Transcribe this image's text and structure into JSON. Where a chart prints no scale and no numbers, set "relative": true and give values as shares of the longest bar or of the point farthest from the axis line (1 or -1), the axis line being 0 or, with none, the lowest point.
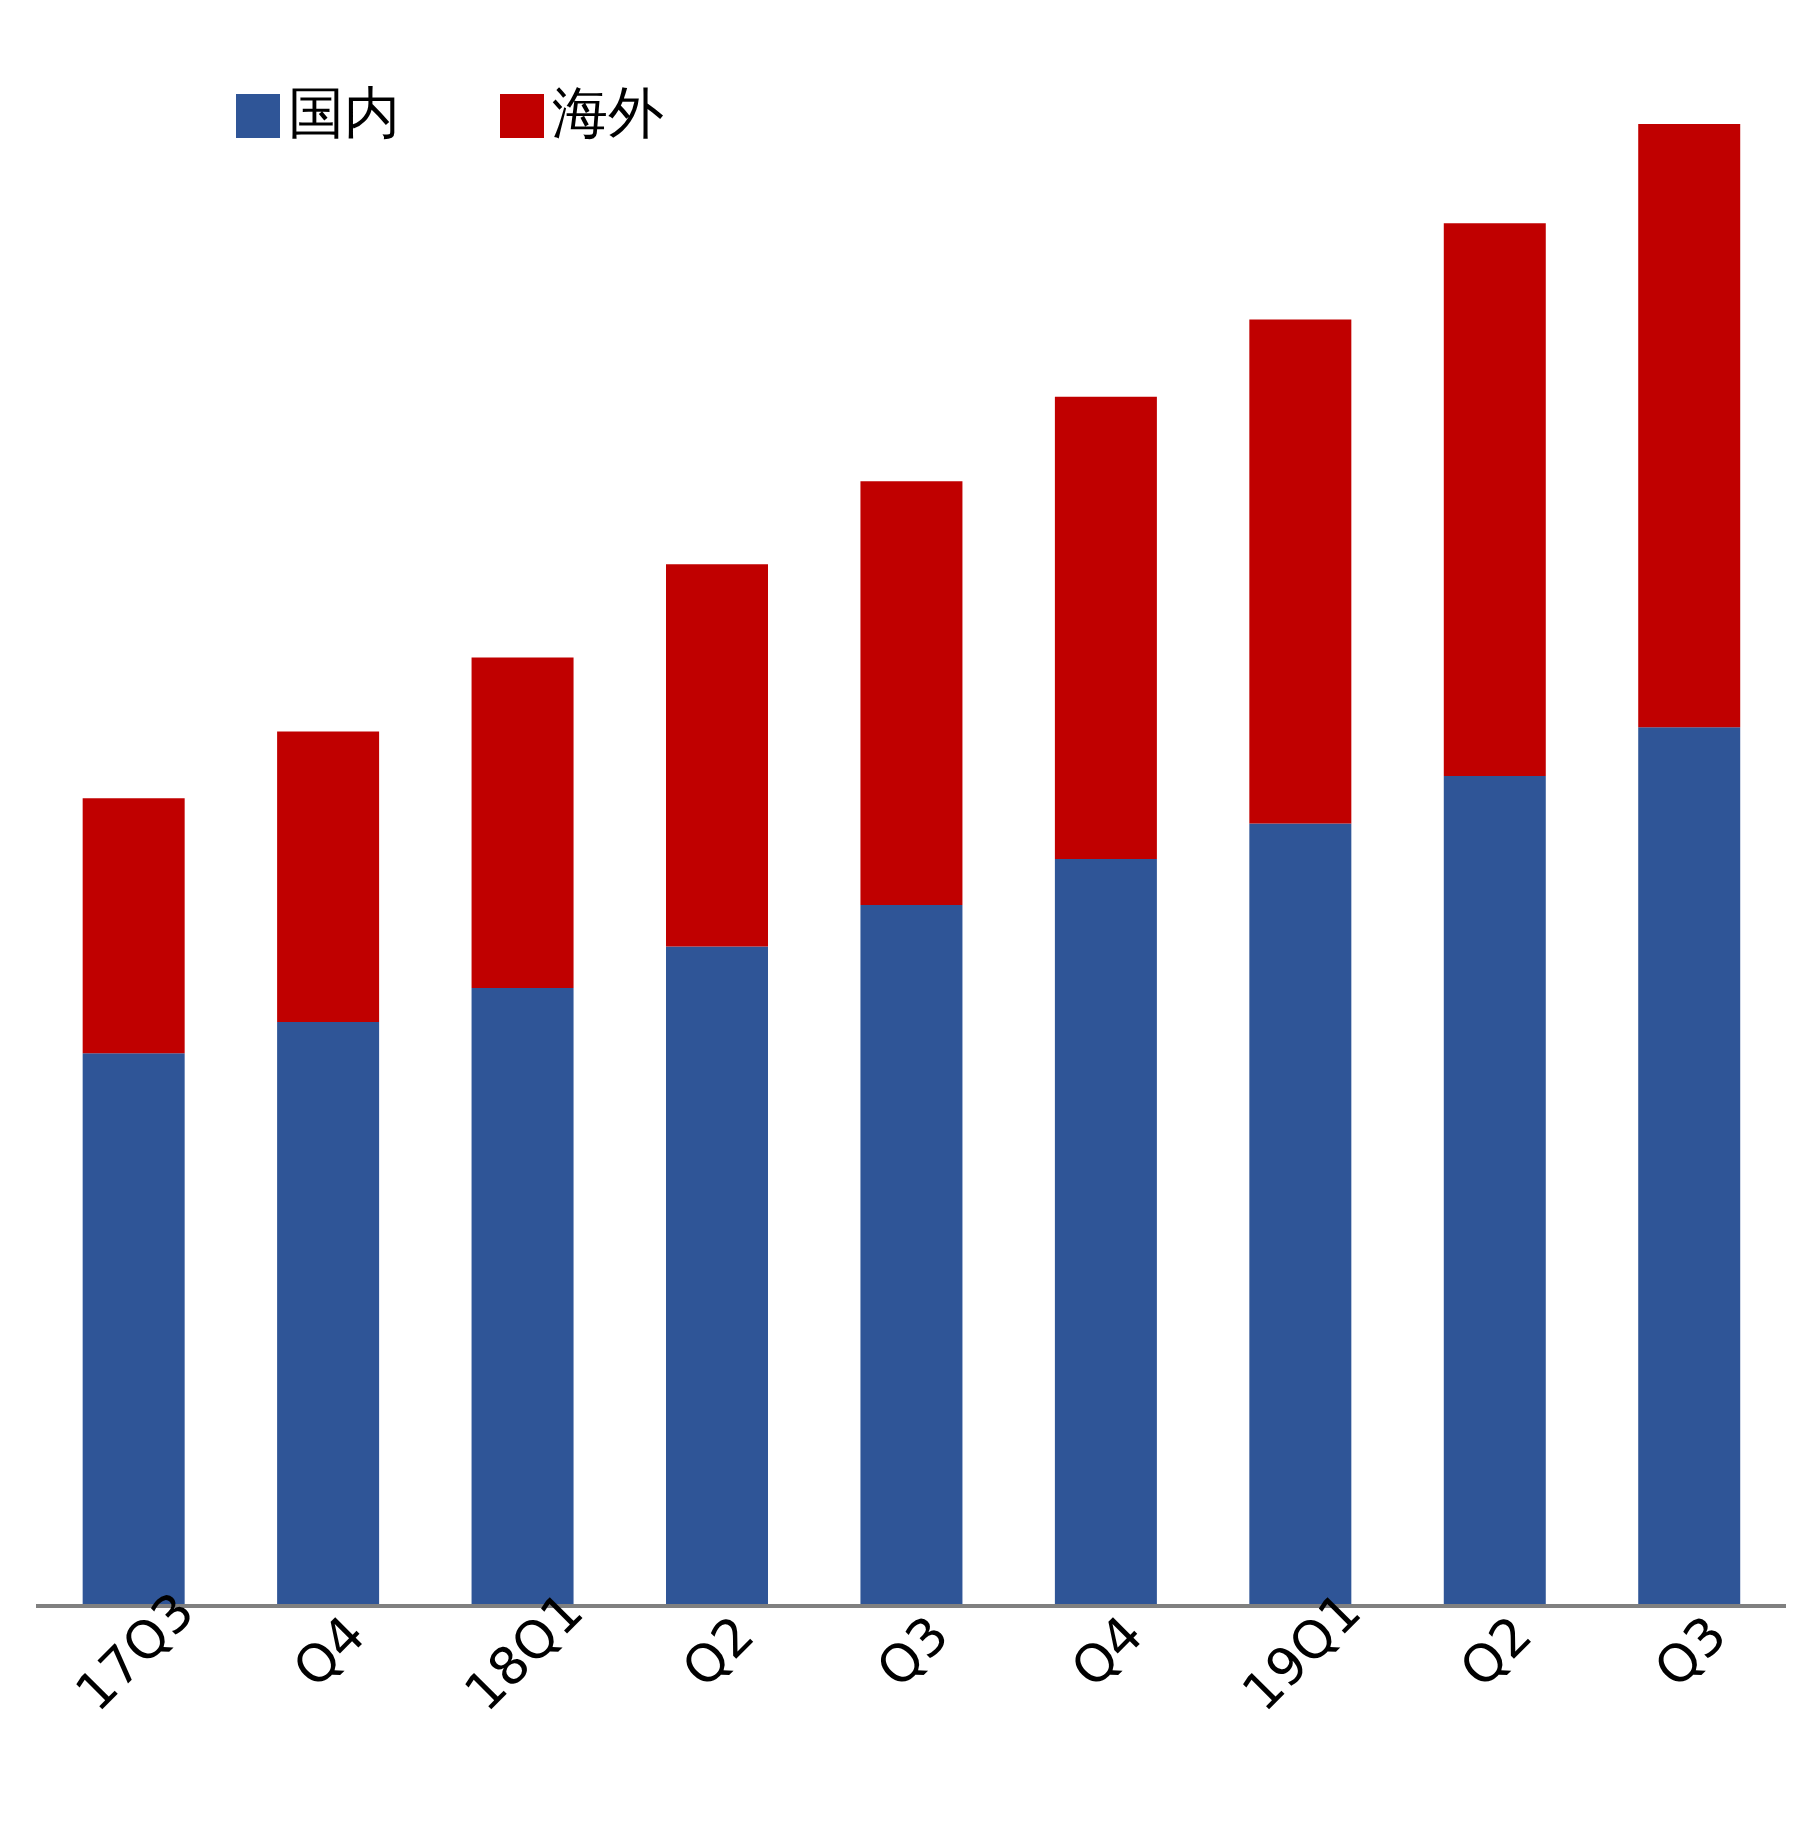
{
  "chart_data": {
    "type": "bar",
    "stacked": true,
    "relative": true,
    "categories": [
      "17Q3",
      "Q4",
      "18Q1",
      "Q2",
      "Q3",
      "Q4",
      "19Q1",
      "Q2",
      "Q3"
    ],
    "series": [
      {
        "name": "国内",
        "color": "#2f5597",
        "values": [
          0.373,
          0.394,
          0.417,
          0.445,
          0.473,
          0.504,
          0.528,
          0.56,
          0.593
        ]
      },
      {
        "name": "海外",
        "color": "#c00000",
        "values": [
          0.172,
          0.196,
          0.223,
          0.258,
          0.286,
          0.312,
          0.34,
          0.373,
          0.407
        ]
      }
    ],
    "legend": "top left",
    "grid": false
  }
}
